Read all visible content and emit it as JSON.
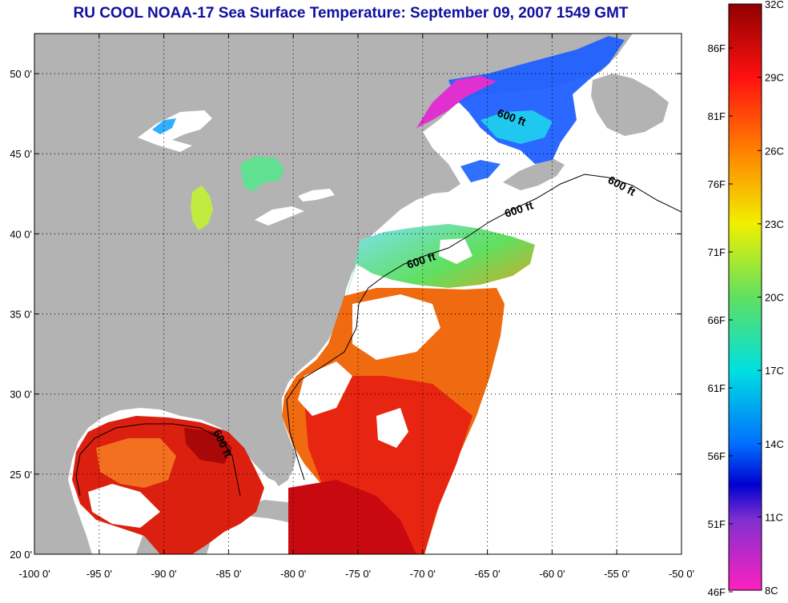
{
  "title": "RU COOL  NOAA-17  Sea Surface Temperature:  September 09, 2007 1549 GMT",
  "colors": {
    "title": "#1010a0",
    "land": "#b3b3b3",
    "no_data": "#ffffff",
    "gridline": "#000000"
  },
  "map": {
    "lon_range": [
      -100,
      -50
    ],
    "lat_range": [
      20,
      52.5
    ],
    "lon_ticks": [
      "-100 0'",
      "-95 0'",
      "-90 0'",
      "-85 0'",
      "-80 0'",
      "-75 0'",
      "-70 0'",
      "-65 0'",
      "-60 0'",
      "-55 0'",
      "-50 0'"
    ],
    "lat_ticks": [
      "20 0'",
      "25 0'",
      "30 0'",
      "35 0'",
      "40 0'",
      "45 0'",
      "50 0'"
    ],
    "contour_label": "600 ft"
  },
  "colorbar": {
    "celsius_labels": [
      "32C",
      "29C",
      "26C",
      "23C",
      "20C",
      "17C",
      "14C",
      "11C",
      "8C"
    ],
    "fahrenheit_labels": [
      "86F",
      "81F",
      "76F",
      "71F",
      "66F",
      "61F",
      "56F",
      "51F",
      "46F"
    ],
    "gradient_stops": [
      "#900000",
      "#ff1010",
      "#ff8000",
      "#f0f000",
      "#60e060",
      "#00e0e0",
      "#0070ff",
      "#0000d0",
      "#8030d0",
      "#ff20c0"
    ]
  }
}
